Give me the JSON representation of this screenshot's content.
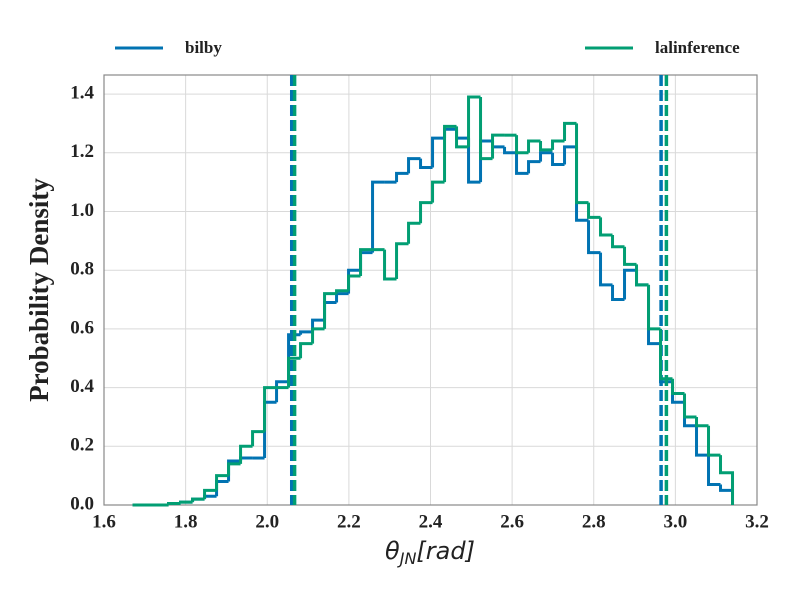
{
  "chart_data": {
    "type": "histogram",
    "ylabel": "Probability Density",
    "xlabel": {
      "main": "θ",
      "sub": "JN",
      "rest": "[rad]"
    },
    "xlim": [
      1.6,
      3.2
    ],
    "ylim": [
      0,
      1.465
    ],
    "xticks": [
      1.6,
      1.8,
      {
        "value": 2.0,
        "label": "2.0"
      },
      2.2,
      2.4,
      2.6,
      2.8,
      {
        "value": 3.0,
        "label": "3.0"
      },
      3.2
    ],
    "yticks": [
      {
        "value": 0,
        "label": "0.0"
      },
      0.2,
      0.4,
      0.6,
      0.8,
      {
        "value": 1.0,
        "label": "1.0"
      },
      1.2,
      1.4
    ],
    "grid": true,
    "bins": [
      1.67,
      1.6994,
      1.7288,
      1.7582,
      1.7876,
      1.817,
      1.8464,
      1.8758,
      1.9052,
      1.9346,
      1.964,
      1.9934,
      2.0228,
      2.0522,
      2.0816,
      2.111,
      2.1404,
      2.1698,
      2.1992,
      2.2286,
      2.258,
      2.2874,
      2.3168,
      2.3462,
      2.3756,
      2.405,
      2.4344,
      2.4638,
      2.4932,
      2.5226,
      2.552,
      2.5814,
      2.6108,
      2.6402,
      2.6696,
      2.699,
      2.7284,
      2.7578,
      2.7872,
      2.8166,
      2.846,
      2.8754,
      2.9048,
      2.9342,
      2.9636,
      2.993,
      3.0224,
      3.0518,
      3.0812,
      3.1106,
      3.14
    ],
    "series": [
      {
        "name": "bilby",
        "color": "#0173b2",
        "quantiles": [
          2.06,
          2.965
        ],
        "values": [
          0,
          0,
          0,
          0.005,
          0.01,
          0.02,
          0.03,
          0.08,
          0.15,
          0.16,
          0.16,
          0.35,
          0.42,
          0.58,
          0.59,
          0.63,
          0.69,
          0.72,
          0.8,
          0.86,
          1.1,
          1.1,
          1.13,
          1.18,
          1.15,
          1.25,
          1.28,
          1.25,
          1.1,
          1.24,
          1.22,
          1.2,
          1.13,
          1.17,
          1.2,
          1.16,
          1.22,
          0.97,
          0.86,
          0.75,
          0.7,
          0.8,
          0.75,
          0.55,
          0.42,
          0.35,
          0.27,
          0.17,
          0.07,
          0.05
        ]
      },
      {
        "name": "lalinference",
        "color": "#029e73",
        "quantiles": [
          2.067,
          2.978
        ],
        "values": [
          0,
          0,
          0,
          0.005,
          0.01,
          0.02,
          0.05,
          0.1,
          0.14,
          0.2,
          0.25,
          0.4,
          0.4,
          0.5,
          0.55,
          0.6,
          0.72,
          0.73,
          0.78,
          0.87,
          0.87,
          0.77,
          0.89,
          0.96,
          1.03,
          1.1,
          1.29,
          1.22,
          1.39,
          1.18,
          1.26,
          1.26,
          1.2,
          1.24,
          1.21,
          1.24,
          1.3,
          1.03,
          0.98,
          0.92,
          0.88,
          0.82,
          0.75,
          0.6,
          0.43,
          0.38,
          0.3,
          0.27,
          0.17,
          0.11
        ]
      }
    ]
  }
}
